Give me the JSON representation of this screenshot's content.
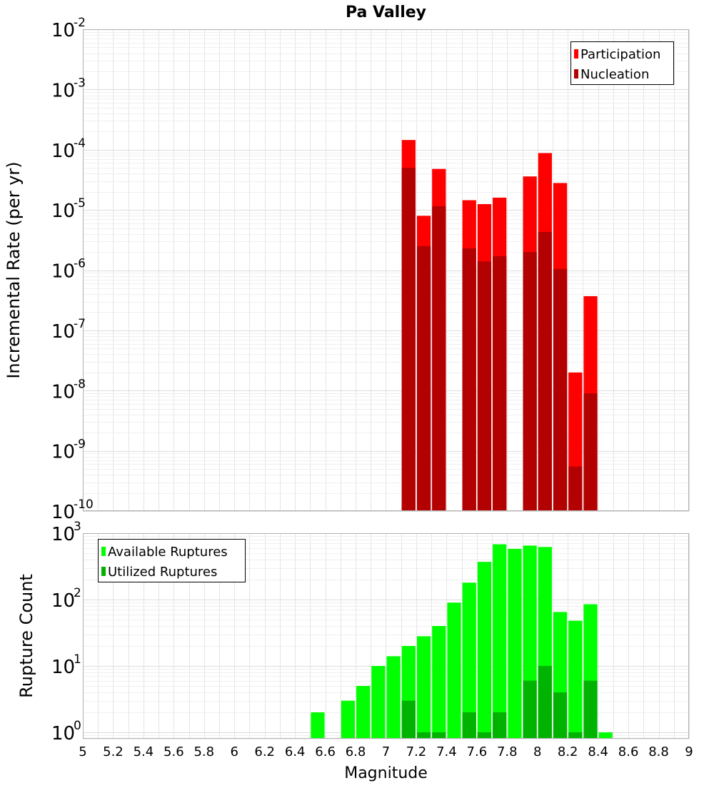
{
  "chart_data": [
    {
      "type": "bar",
      "title": "Pa Valley",
      "xlabel": "",
      "ylabel": "Incremental Rate (per yr)",
      "yscale": "log",
      "ylim": [
        1e-10,
        0.01
      ],
      "xlim": [
        5,
        9
      ],
      "y_ticks": [
        {
          "base": "10",
          "exp": "-2"
        },
        {
          "base": "10",
          "exp": "-3"
        },
        {
          "base": "10",
          "exp": "-4"
        },
        {
          "base": "10",
          "exp": "-5"
        },
        {
          "base": "10",
          "exp": "-6"
        },
        {
          "base": "10",
          "exp": "-7"
        },
        {
          "base": "10",
          "exp": "-8"
        },
        {
          "base": "10",
          "exp": "-9"
        },
        {
          "base": "10",
          "exp": "-10"
        }
      ],
      "legend_position": "top-right",
      "grid": true,
      "series": [
        {
          "name": "Participation",
          "color": "#ff0000",
          "points": [
            [
              7.15,
              0.000145
            ],
            [
              7.25,
              8e-06
            ],
            [
              7.35,
              4.8e-05
            ],
            [
              7.55,
              1.45e-05
            ],
            [
              7.65,
              1.25e-05
            ],
            [
              7.75,
              1.6e-05
            ],
            [
              7.95,
              3.6e-05
            ],
            [
              8.05,
              8.8e-05
            ],
            [
              8.15,
              2.8e-05
            ],
            [
              8.25,
              2e-08
            ],
            [
              8.35,
              3.7e-07
            ]
          ]
        },
        {
          "name": "Nucleation",
          "color": "#b30000",
          "points": [
            [
              7.15,
              5e-05
            ],
            [
              7.25,
              2.5e-06
            ],
            [
              7.35,
              1.15e-05
            ],
            [
              7.55,
              2.3e-06
            ],
            [
              7.65,
              1.4e-06
            ],
            [
              7.75,
              1.7e-06
            ],
            [
              7.95,
              2e-06
            ],
            [
              8.05,
              4.3e-06
            ],
            [
              8.15,
              1.05e-06
            ],
            [
              8.25,
              5.5e-10
            ],
            [
              8.35,
              9e-09
            ]
          ]
        }
      ]
    },
    {
      "type": "bar",
      "title": "",
      "xlabel": "Magnitude",
      "ylabel": "Rupture Count",
      "yscale": "log",
      "ylim": [
        0.8,
        1000
      ],
      "xlim": [
        5,
        9
      ],
      "x_ticks": [
        "5",
        "5.2",
        "5.4",
        "5.6",
        "5.8",
        "6",
        "6.2",
        "6.4",
        "6.6",
        "6.8",
        "7",
        "7.2",
        "7.4",
        "7.6",
        "7.8",
        "8",
        "8.2",
        "8.4",
        "8.6",
        "8.8",
        "9"
      ],
      "y_ticks": [
        {
          "base": "10",
          "exp": "3"
        },
        {
          "base": "10",
          "exp": "2"
        },
        {
          "base": "10",
          "exp": "1"
        },
        {
          "base": "10",
          "exp": "0"
        }
      ],
      "legend_position": "top-left",
      "grid": true,
      "series": [
        {
          "name": "Available Ruptures",
          "color": "#00ff00",
          "points": [
            [
              6.55,
              2
            ],
            [
              6.75,
              3
            ],
            [
              6.85,
              5
            ],
            [
              6.95,
              10
            ],
            [
              7.05,
              14
            ],
            [
              7.15,
              20
            ],
            [
              7.25,
              28
            ],
            [
              7.35,
              40
            ],
            [
              7.45,
              90
            ],
            [
              7.55,
              180
            ],
            [
              7.65,
              370
            ],
            [
              7.75,
              680
            ],
            [
              7.85,
              580
            ],
            [
              7.95,
              650
            ],
            [
              8.05,
              620
            ],
            [
              8.15,
              65
            ],
            [
              8.25,
              48
            ],
            [
              8.35,
              85
            ],
            [
              8.45,
              1
            ]
          ]
        },
        {
          "name": "Utilized Ruptures",
          "color": "#00b300",
          "points": [
            [
              7.15,
              3
            ],
            [
              7.25,
              1
            ],
            [
              7.35,
              1
            ],
            [
              7.55,
              2
            ],
            [
              7.65,
              1
            ],
            [
              7.75,
              2
            ],
            [
              7.95,
              6
            ],
            [
              8.05,
              10
            ],
            [
              8.15,
              4
            ],
            [
              8.25,
              1
            ],
            [
              8.35,
              6
            ]
          ]
        }
      ]
    }
  ]
}
